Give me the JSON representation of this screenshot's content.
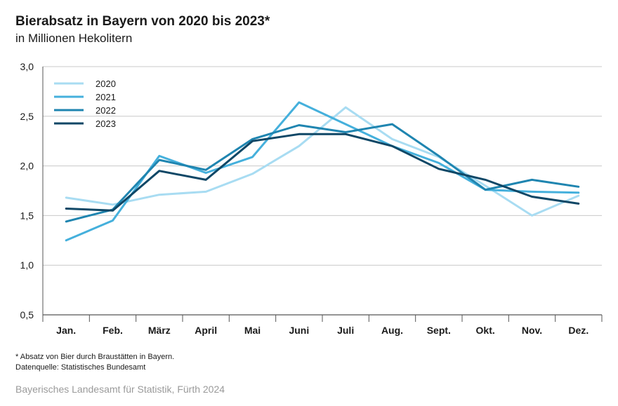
{
  "header": {
    "title": "Bierabsatz in Bayern von 2020 bis 2023*",
    "subtitle": "in Millionen Hekolitern"
  },
  "footnote": {
    "line1": "* Absatz von Bier durch Braustätten in Bayern.",
    "line2": "Datenquelle: Statistisches Bundesamt"
  },
  "source": "Bayerisches Landesamt für Statistik, Fürth 2024",
  "chart_data": {
    "type": "line",
    "title": "Bierabsatz in Bayern von 2020 bis 2023*",
    "subtitle": "in Millionen Hekolitern",
    "categories": [
      "Jan.",
      "Feb.",
      "März",
      "April",
      "Mai",
      "Juni",
      "Juli",
      "Aug.",
      "Sept.",
      "Okt.",
      "Nov.",
      "Dez."
    ],
    "ylim": [
      0.5,
      3.0
    ],
    "yticks": [
      0.5,
      1.0,
      1.5,
      2.0,
      2.5,
      3.0
    ],
    "ytick_labels": [
      "0,5",
      "1,0",
      "1,5",
      "2,0",
      "2,5",
      "3,0"
    ],
    "grid": true,
    "legend": "top-left",
    "series": [
      {
        "name": "2020",
        "color": "#a8dcf2",
        "values": [
          1.68,
          1.61,
          1.71,
          1.74,
          1.92,
          2.2,
          2.59,
          2.27,
          2.09,
          1.8,
          1.5,
          1.7
        ]
      },
      {
        "name": "2021",
        "color": "#45b0dc",
        "values": [
          1.25,
          1.45,
          2.1,
          1.93,
          2.09,
          2.64,
          2.42,
          2.2,
          2.03,
          1.76,
          1.74,
          1.73
        ]
      },
      {
        "name": "2022",
        "color": "#1f85b0",
        "values": [
          1.44,
          1.56,
          2.06,
          1.96,
          2.27,
          2.41,
          2.34,
          2.42,
          2.1,
          1.76,
          1.86,
          1.79
        ]
      },
      {
        "name": "2023",
        "color": "#0f4766",
        "values": [
          1.57,
          1.55,
          1.95,
          1.86,
          2.25,
          2.32,
          2.32,
          2.2,
          1.97,
          1.86,
          1.69,
          1.62
        ]
      }
    ]
  }
}
